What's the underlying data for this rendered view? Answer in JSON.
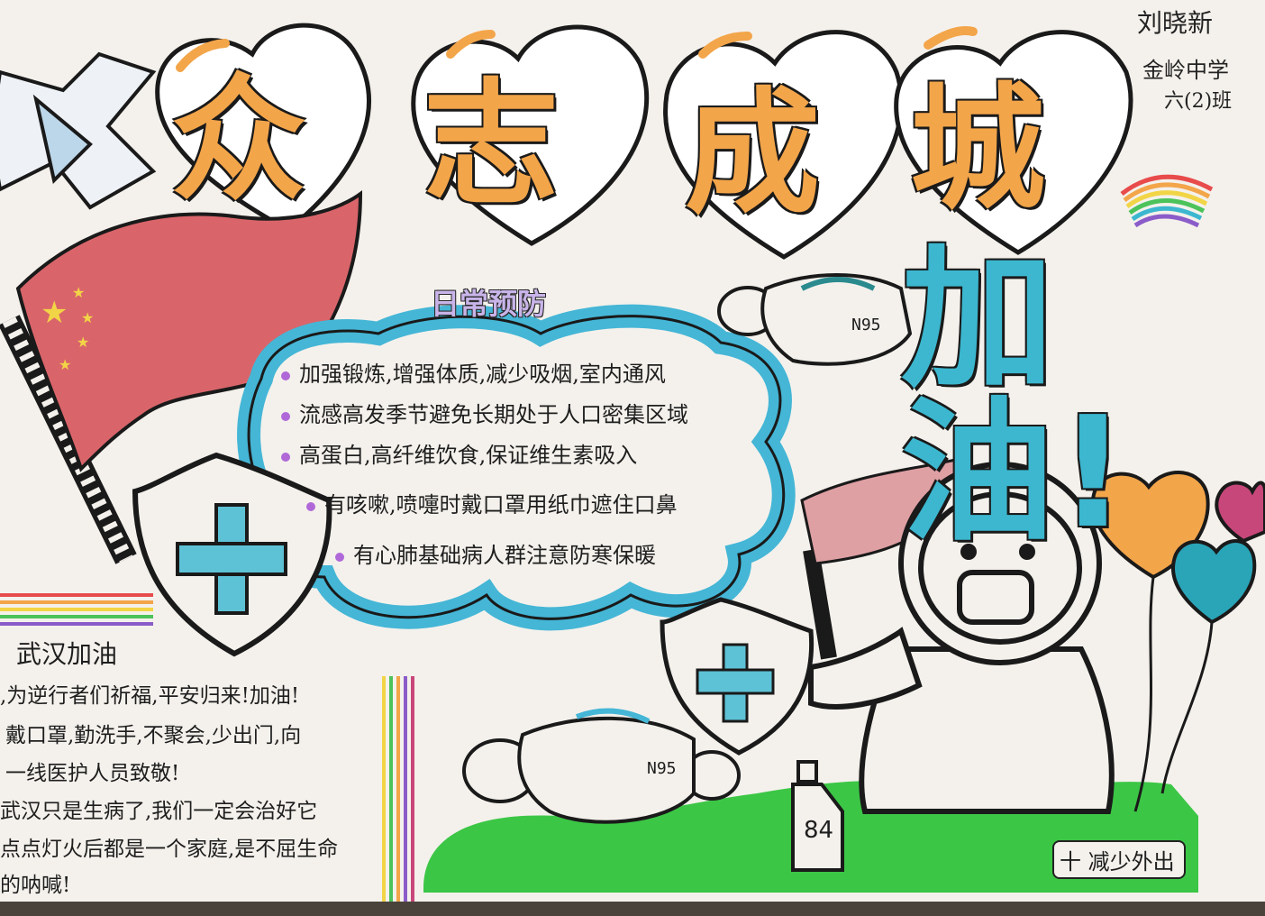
{
  "author": {
    "name": "刘晓新",
    "school": "金岭中学",
    "class": "六(2)班"
  },
  "title": {
    "chars": [
      "众",
      "志",
      "成",
      "城"
    ],
    "cheer": "加油!"
  },
  "prevention": {
    "heading": "日常预防",
    "tips": [
      "加强锻炼,增强体质,减少吸烟,室内通风",
      "流感高发季节避免长期处于人口密集区域",
      "高蛋白,高纤维饮食,保证维生素吸入",
      "有咳嗽,喷嚏时戴口罩用纸巾遮住口鼻",
      "有心肺基础病人群注意防寒保暖"
    ]
  },
  "wuhan": {
    "heading": "武汉加油",
    "lines": [
      ",为逆行者们祈福,平安归来!加油!",
      "戴口罩,勤洗手,不聚会,少出门,向",
      "一线医护人员致敬!",
      "武汉只是生病了,我们一定会治好它",
      "点点灯火后都是一个家庭,是不屈生命",
      "的呐喊!"
    ]
  },
  "labels": {
    "mask_top": "N95",
    "mask_bottom": "N95",
    "bottle": "84",
    "stay_home": "减少外出",
    "stay_home_icon": "十"
  },
  "colors": {
    "title": "#f3a54a",
    "cheer": "#3cb7cf",
    "cloud": "#45b6d6",
    "flag": "#d9656a",
    "ground": "#3cc646",
    "heading": "#c8b4e8"
  }
}
